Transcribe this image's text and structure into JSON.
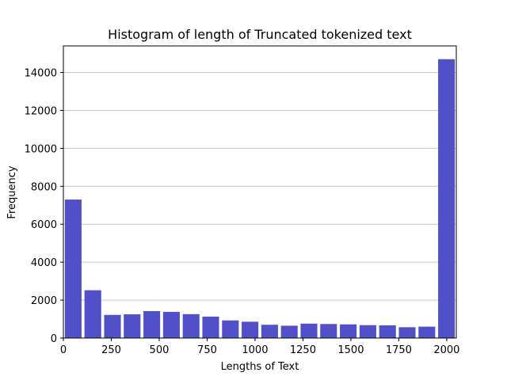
{
  "chart_data": {
    "type": "bar",
    "title": "Histogram of length of Truncated tokenized text",
    "xlabel": "Lengths of Text",
    "ylabel": "Frequency",
    "xlim": [
      0,
      2050
    ],
    "ylim": [
      0,
      15400
    ],
    "x_ticks": [
      0,
      250,
      500,
      750,
      1000,
      1250,
      1500,
      1750,
      2000
    ],
    "y_ticks": [
      0,
      2000,
      4000,
      6000,
      8000,
      10000,
      12000,
      14000
    ],
    "grid": "y",
    "bar_color": "#5150c6",
    "bin_width": 102.5,
    "bar_fill_ratio": 0.85,
    "bins": [
      {
        "x": 0,
        "value": 7300
      },
      {
        "x": 102.5,
        "value": 2520
      },
      {
        "x": 205,
        "value": 1220
      },
      {
        "x": 307.5,
        "value": 1250
      },
      {
        "x": 410,
        "value": 1420
      },
      {
        "x": 512.5,
        "value": 1380
      },
      {
        "x": 615,
        "value": 1260
      },
      {
        "x": 717.5,
        "value": 1130
      },
      {
        "x": 820,
        "value": 930
      },
      {
        "x": 922.5,
        "value": 860
      },
      {
        "x": 1025,
        "value": 700
      },
      {
        "x": 1127.5,
        "value": 650
      },
      {
        "x": 1230,
        "value": 760
      },
      {
        "x": 1332.5,
        "value": 740
      },
      {
        "x": 1435,
        "value": 720
      },
      {
        "x": 1537.5,
        "value": 680
      },
      {
        "x": 1640,
        "value": 670
      },
      {
        "x": 1742.5,
        "value": 570
      },
      {
        "x": 1845,
        "value": 600
      },
      {
        "x": 1947.5,
        "value": 14700
      }
    ]
  }
}
